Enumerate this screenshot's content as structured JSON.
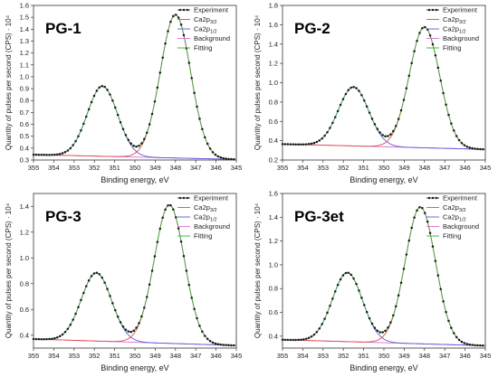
{
  "chart_data": [
    {
      "type": "line",
      "title": "PG-1",
      "xlabel": "Binding energy, eV",
      "ylabel": "Quantity of pulses per second  (CPS) · 10⁴",
      "xlim": [
        355,
        345
      ],
      "ylim": [
        0.3,
        1.6
      ],
      "x_reversed": true,
      "xticks": [
        "355",
        "354",
        "353",
        "352",
        "351",
        "350",
        "349",
        "348",
        "347",
        "346",
        "345"
      ],
      "yticks": [
        "0.3",
        "0.4",
        "0.5",
        "0.6",
        "0.7",
        "0.8",
        "0.9",
        "1.0",
        "1.1",
        "1.2",
        "1.3",
        "1.4",
        "1.5",
        "1.6"
      ],
      "grid": false,
      "legend_position": "top-right",
      "legend": [
        {
          "label": "Experiment",
          "sub": ""
        },
        {
          "label": "Ca2p",
          "sub": "3/2"
        },
        {
          "label": "Ca2p",
          "sub": "1/2"
        },
        {
          "label": "Background",
          "sub": ""
        },
        {
          "label": "Fitting",
          "sub": ""
        }
      ],
      "background_line": {
        "x": [
          355,
          345
        ],
        "y": [
          0.345,
          0.305
        ]
      },
      "peaks": [
        {
          "name": "Ca2p3/2",
          "center": 348.0,
          "height": 1.205,
          "fwhm": 1.75
        },
        {
          "name": "Ca2p1/2",
          "center": 351.6,
          "height": 0.59,
          "fwhm": 1.75
        }
      ],
      "experiment_step": 0.13
    },
    {
      "type": "line",
      "title": "PG-2",
      "xlabel": "Binding energy, eV",
      "ylabel": "Quantity of pulses per second  (CPS) · 10⁴",
      "xlim": [
        355,
        345
      ],
      "ylim": [
        0.2,
        1.8
      ],
      "x_reversed": true,
      "xticks": [
        "355",
        "354",
        "353",
        "352",
        "351",
        "350",
        "349",
        "348",
        "347",
        "346",
        "345"
      ],
      "yticks": [
        "0.2",
        "0.4",
        "0.6",
        "0.8",
        "1.0",
        "1.2",
        "1.4",
        "1.6",
        "1.8"
      ],
      "grid": false,
      "legend_position": "top-right",
      "legend": [
        {
          "label": "Experiment",
          "sub": ""
        },
        {
          "label": "Ca2p",
          "sub": "3/2"
        },
        {
          "label": "Ca2p",
          "sub": "1/2"
        },
        {
          "label": "Background",
          "sub": ""
        },
        {
          "label": "Fitting",
          "sub": ""
        }
      ],
      "background_line": {
        "x": [
          355,
          345
        ],
        "y": [
          0.365,
          0.31
        ]
      },
      "peaks": [
        {
          "name": "Ca2p3/2",
          "center": 348.0,
          "height": 1.25,
          "fwhm": 1.75
        },
        {
          "name": "Ca2p1/2",
          "center": 351.5,
          "height": 0.61,
          "fwhm": 1.75
        }
      ],
      "experiment_step": 0.13
    },
    {
      "type": "line",
      "title": "PG-3",
      "xlabel": "Binding energy, eV",
      "ylabel": "Quantity of pulses per second  (CPS) · 10⁴",
      "xlim": [
        355,
        345
      ],
      "ylim": [
        0.3,
        1.5
      ],
      "x_reversed": true,
      "xticks": [
        "355",
        "354",
        "353",
        "352",
        "351",
        "350",
        "349",
        "348",
        "347",
        "346",
        "345"
      ],
      "yticks": [
        "0.4",
        "0.6",
        "0.8",
        "1.0",
        "1.2",
        "1.4"
      ],
      "grid": false,
      "legend_position": "top-right",
      "legend": [
        {
          "label": "Experiment",
          "sub": ""
        },
        {
          "label": "Ca2p",
          "sub": "3/2"
        },
        {
          "label": "Ca2p",
          "sub": "1/2"
        },
        {
          "label": "Background",
          "sub": ""
        },
        {
          "label": "Fitting",
          "sub": ""
        }
      ],
      "background_line": {
        "x": [
          355,
          345
        ],
        "y": [
          0.37,
          0.32
        ]
      },
      "peaks": [
        {
          "name": "Ca2p3/2",
          "center": 348.3,
          "height": 1.075,
          "fwhm": 1.75
        },
        {
          "name": "Ca2p1/2",
          "center": 351.9,
          "height": 0.53,
          "fwhm": 1.75
        }
      ],
      "experiment_step": 0.13
    },
    {
      "type": "line",
      "title": "PG-3et",
      "xlabel": "Binding energy, eV",
      "ylabel": "Quantity of pulses per second  (CPS) · 10⁴",
      "xlim": [
        355,
        345
      ],
      "ylim": [
        0.3,
        1.6
      ],
      "x_reversed": true,
      "xticks": [
        "355",
        "354",
        "353",
        "352",
        "351",
        "350",
        "349",
        "348",
        "347",
        "346",
        "345"
      ],
      "yticks": [
        "0.4",
        "0.6",
        "0.8",
        "1.0",
        "1.2",
        "1.4",
        "1.6"
      ],
      "grid": false,
      "legend_position": "top-right",
      "legend": [
        {
          "label": "Experiment",
          "sub": ""
        },
        {
          "label": "Ca2p",
          "sub": "3/2"
        },
        {
          "label": "Ca2p",
          "sub": "1/2"
        },
        {
          "label": "Background",
          "sub": ""
        },
        {
          "label": "Fitting",
          "sub": ""
        }
      ],
      "background_line": {
        "x": [
          355,
          345
        ],
        "y": [
          0.37,
          0.32
        ]
      },
      "peaks": [
        {
          "name": "Ca2p3/2",
          "center": 348.2,
          "height": 1.15,
          "fwhm": 1.75
        },
        {
          "name": "Ca2p1/2",
          "center": 351.8,
          "height": 0.58,
          "fwhm": 1.75
        }
      ],
      "experiment_step": 0.13
    }
  ],
  "colors": {
    "experiment": "#1a1a1a",
    "ca2p32": "#e04a4a",
    "ca2p12": "#5a5ad8",
    "background": "#e06ad8",
    "fitting": "#3aa83a",
    "axis": "#333333"
  }
}
